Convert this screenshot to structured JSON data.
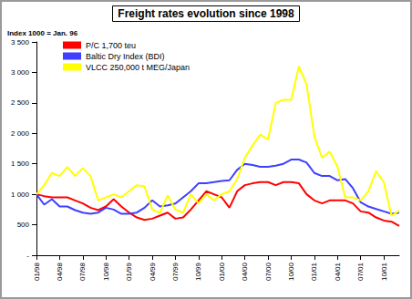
{
  "chart_data": {
    "type": "line",
    "title": "Freight rates evolution since 1998",
    "subtitle": "Index 1000 = Jan. 96",
    "categories": [
      "01/98",
      null,
      null,
      "04/98",
      null,
      null,
      "07/98",
      null,
      null,
      "10/98",
      null,
      null,
      "01/99",
      null,
      null,
      "04/99",
      null,
      null,
      "07/99",
      null,
      null,
      "10/99",
      null,
      null,
      "01/00",
      null,
      null,
      "04/00",
      null,
      null,
      "07/00",
      null,
      null,
      "10/00",
      null,
      null,
      "01/01",
      null,
      null,
      "04/01",
      null,
      null,
      "07/01",
      null,
      null,
      "10/01",
      null,
      null
    ],
    "series": [
      {
        "name": "P/C 1,700 teu",
        "color": "#ff0000",
        "values": [
          1000,
          970,
          950,
          950,
          950,
          900,
          850,
          780,
          740,
          800,
          920,
          800,
          700,
          620,
          580,
          600,
          650,
          700,
          600,
          620,
          750,
          900,
          1050,
          1000,
          950,
          780,
          1050,
          1150,
          1180,
          1200,
          1200,
          1150,
          1200,
          1200,
          1180,
          1000,
          900,
          850,
          900,
          900,
          900,
          850,
          720,
          700,
          620,
          570,
          550,
          480
        ]
      },
      {
        "name": "Baltic Dry Index (BDI)",
        "color": "#3f3fff",
        "values": [
          1000,
          830,
          920,
          800,
          800,
          740,
          700,
          680,
          700,
          780,
          750,
          680,
          680,
          700,
          780,
          900,
          800,
          820,
          850,
          950,
          1050,
          1180,
          1180,
          1200,
          1220,
          1230,
          1400,
          1500,
          1480,
          1450,
          1450,
          1470,
          1500,
          1570,
          1570,
          1520,
          1350,
          1300,
          1300,
          1230,
          1250,
          1100,
          870,
          800,
          760,
          720,
          680,
          700
        ]
      },
      {
        "name": "VLCC 250,000 t MEG/Japan",
        "color": "#ffff00",
        "values": [
          1000,
          1150,
          1350,
          1300,
          1450,
          1300,
          1430,
          1300,
          900,
          950,
          1000,
          950,
          1050,
          1150,
          1130,
          750,
          700,
          980,
          750,
          700,
          1000,
          850,
          1000,
          900,
          1000,
          1050,
          1250,
          1600,
          1800,
          1980,
          1900,
          2500,
          2550,
          2550,
          3100,
          2800,
          1950,
          1600,
          1700,
          1450,
          950,
          950,
          900,
          1050,
          1380,
          1200,
          650,
          730
        ]
      }
    ],
    "ylim": [
      0,
      3500
    ],
    "yticks": [
      {
        "value": 0,
        "label": "-"
      },
      500,
      {
        "value": 1000,
        "label": "1 000"
      },
      {
        "value": 1500,
        "label": "1 500"
      },
      {
        "value": 2000,
        "label": "2 000"
      },
      {
        "value": 2500,
        "label": "2 500"
      },
      {
        "value": 3000,
        "label": "3 000"
      },
      {
        "value": 3500,
        "label": "3 500"
      }
    ],
    "grid": false,
    "legend": "upper left"
  }
}
